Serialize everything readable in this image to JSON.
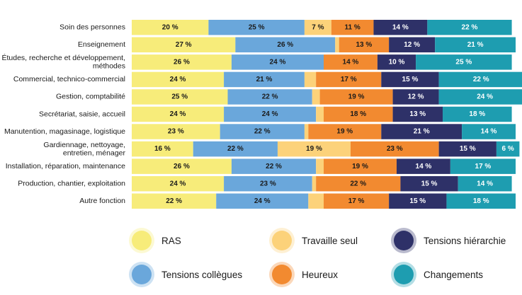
{
  "chart_data": {
    "type": "bar",
    "orientation": "horizontal",
    "stacked": true,
    "percent": true,
    "categories": [
      "Soin des personnes",
      "Enseignement",
      "Études, recherche et développement, méthodes",
      "Commercial, technico-commercial",
      "Gestion, comptabilité",
      "Secrétariat, saisie, accueil",
      "Manutention, magasinage, logistique",
      "Gardiennage, nettoyage, entretien, ménager",
      "Installation, réparation, maintenance",
      "Production, chantier, exploitation",
      "Autre fonction"
    ],
    "series": [
      {
        "name": "RAS",
        "color": "#f7ec7a",
        "values": [
          20,
          27,
          26,
          24,
          25,
          24,
          23,
          16,
          26,
          24,
          22
        ]
      },
      {
        "name": "Tensions collègues",
        "color": "#6aa7db",
        "values": [
          25,
          26,
          24,
          21,
          22,
          24,
          22,
          22,
          22,
          23,
          24
        ]
      },
      {
        "name": "Travaille seul",
        "color": "#fcd27a",
        "values": [
          7,
          1,
          0,
          3,
          2,
          2,
          1,
          19,
          2,
          1,
          4
        ]
      },
      {
        "name": "Heureux",
        "color": "#f28a30",
        "values": [
          11,
          13,
          14,
          17,
          19,
          18,
          19,
          23,
          19,
          22,
          17
        ]
      },
      {
        "name": "Tensions hiérarchie",
        "color": "#2e3168",
        "values": [
          14,
          12,
          10,
          15,
          12,
          13,
          21,
          15,
          14,
          15,
          15
        ]
      },
      {
        "name": "Changements",
        "color": "#1e9db0",
        "values": [
          22,
          21,
          25,
          22,
          24,
          18,
          14,
          6,
          17,
          14,
          18
        ]
      }
    ],
    "legend_order": [
      "RAS",
      "Travaille seul",
      "Tensions hiérarchie",
      "Tensions collègues",
      "Heureux",
      "Changements"
    ],
    "legend_position": "bottom",
    "label_suffix": " %",
    "xlim": [
      0,
      100
    ]
  }
}
